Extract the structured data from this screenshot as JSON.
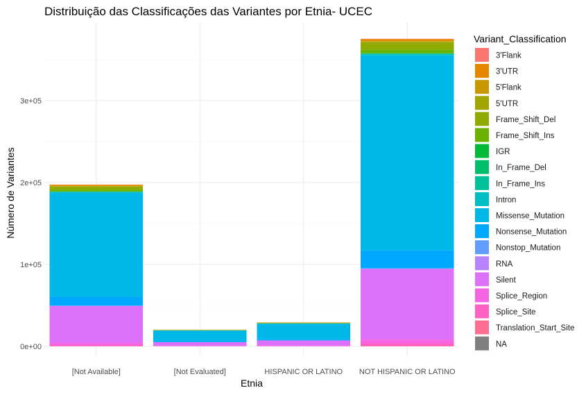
{
  "chart_data": {
    "type": "bar",
    "stacked": true,
    "title": "Distribuição das Classificações das Variantes por Etnia- UCEC",
    "xlabel": "Etnia",
    "ylabel": "Número de Variantes",
    "ylim": [
      0,
      385000
    ],
    "y_ticks": [
      {
        "value": 0,
        "label": "0e+00"
      },
      {
        "value": 100000,
        "label": "1e+05"
      },
      {
        "value": 200000,
        "label": "2e+05"
      },
      {
        "value": 300000,
        "label": "3e+05"
      }
    ],
    "grid": true,
    "legend_position": "right",
    "legend_title": "Variant_Classification",
    "categories": [
      "[Not Available]",
      "[Not Evaluated]",
      "HISPANIC OR LATINO",
      "NOT HISPANIC OR LATINO"
    ],
    "series": [
      {
        "name": "3'Flank",
        "color": "#F8766D",
        "values": [
          150,
          20,
          20,
          300
        ]
      },
      {
        "name": "3'UTR",
        "color": "#E58700",
        "values": [
          1500,
          150,
          200,
          2500
        ]
      },
      {
        "name": "5'Flank",
        "color": "#C99800",
        "values": [
          300,
          30,
          40,
          500
        ]
      },
      {
        "name": "5'UTR",
        "color": "#A3A500",
        "values": [
          1000,
          100,
          150,
          1800
        ]
      },
      {
        "name": "Frame_Shift_Del",
        "color": "#8FAA00",
        "values": [
          3500,
          400,
          600,
          8000
        ]
      },
      {
        "name": "Frame_Shift_Ins",
        "color": "#6BB100",
        "values": [
          2000,
          250,
          300,
          4500
        ]
      },
      {
        "name": "IGR",
        "color": "#00BA38",
        "values": [
          100,
          10,
          15,
          200
        ]
      },
      {
        "name": "In_Frame_Del",
        "color": "#00BE6C",
        "values": [
          400,
          50,
          60,
          800
        ]
      },
      {
        "name": "In_Frame_Ins",
        "color": "#00C19A",
        "values": [
          100,
          15,
          20,
          200
        ]
      },
      {
        "name": "Intron",
        "color": "#00BFC4",
        "values": [
          800,
          100,
          120,
          1500
        ]
      },
      {
        "name": "Missense_Mutation",
        "color": "#00B8E7",
        "values": [
          127000,
          13000,
          19000,
          238000
        ]
      },
      {
        "name": "Nonsense_Mutation",
        "color": "#00A9FF",
        "values": [
          11000,
          1200,
          1500,
          22000
        ]
      },
      {
        "name": "Nonstop_Mutation",
        "color": "#619CFF",
        "values": [
          150,
          20,
          20,
          250
        ]
      },
      {
        "name": "RNA",
        "color": "#B983FF",
        "values": [
          300,
          40,
          50,
          600
        ]
      },
      {
        "name": "Silent",
        "color": "#DE71F9",
        "values": [
          45000,
          4500,
          6500,
          86000
        ]
      },
      {
        "name": "Splice_Region",
        "color": "#F564E3",
        "values": [
          2500,
          300,
          400,
          5000
        ]
      },
      {
        "name": "Splice_Site",
        "color": "#FF61C3",
        "values": [
          1500,
          200,
          250,
          3000
        ]
      },
      {
        "name": "Translation_Start_Site",
        "color": "#FF6C91",
        "values": [
          200,
          25,
          30,
          400
        ]
      },
      {
        "name": "NA",
        "color": "#7F7F7F",
        "values": [
          0,
          0,
          0,
          0
        ]
      }
    ]
  }
}
